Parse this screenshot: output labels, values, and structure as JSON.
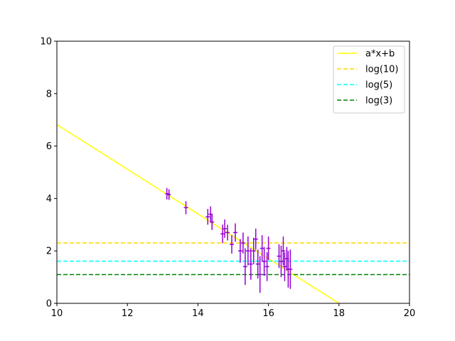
{
  "chart_data": {
    "type": "scatter",
    "title": "",
    "xlabel": "",
    "ylabel": "",
    "xlim": [
      10,
      20
    ],
    "ylim": [
      0,
      10
    ],
    "x_ticks": [
      "10",
      "12",
      "14",
      "16",
      "18",
      "20"
    ],
    "y_ticks": [
      "0",
      "2",
      "4",
      "6",
      "8",
      "10"
    ],
    "legend_position": "top-right",
    "series": [
      {
        "name": "a*x+b",
        "kind": "line",
        "color": "#ffff00",
        "style": "solid",
        "x": [
          10,
          18
        ],
        "y": [
          6.82,
          0
        ]
      },
      {
        "name": "log(10)",
        "kind": "hline",
        "color": "#ffd700",
        "style": "dashed",
        "value": 2.3026
      },
      {
        "name": "log(5)",
        "kind": "hline",
        "color": "#00ffff",
        "style": "dashed",
        "value": 1.6094
      },
      {
        "name": "log(3)",
        "kind": "hline",
        "color": "#008000",
        "style": "dashed",
        "value": 1.0986
      }
    ],
    "points": {
      "color": "#9400d3",
      "data": [
        {
          "x": 13.12,
          "y": 4.18,
          "yerr": 0.22,
          "xerr": 0.05
        },
        {
          "x": 13.18,
          "y": 4.15,
          "yerr": 0.2,
          "xerr": 0.05
        },
        {
          "x": 13.66,
          "y": 3.65,
          "yerr": 0.25,
          "xerr": 0.06
        },
        {
          "x": 14.28,
          "y": 3.3,
          "yerr": 0.3,
          "xerr": 0.06
        },
        {
          "x": 14.36,
          "y": 3.4,
          "yerr": 0.3,
          "xerr": 0.06
        },
        {
          "x": 14.4,
          "y": 3.1,
          "yerr": 0.3,
          "xerr": 0.06
        },
        {
          "x": 14.7,
          "y": 2.65,
          "yerr": 0.35,
          "xerr": 0.06
        },
        {
          "x": 14.76,
          "y": 2.85,
          "yerr": 0.35,
          "xerr": 0.06
        },
        {
          "x": 14.84,
          "y": 2.7,
          "yerr": 0.3,
          "xerr": 0.06
        },
        {
          "x": 14.96,
          "y": 2.25,
          "yerr": 0.35,
          "xerr": 0.06
        },
        {
          "x": 15.06,
          "y": 2.7,
          "yerr": 0.35,
          "xerr": 0.06
        },
        {
          "x": 15.2,
          "y": 2.0,
          "yerr": 0.45,
          "xerr": 0.06
        },
        {
          "x": 15.28,
          "y": 2.3,
          "yerr": 0.4,
          "xerr": 0.06
        },
        {
          "x": 15.34,
          "y": 1.4,
          "yerr": 0.7,
          "xerr": 0.06
        },
        {
          "x": 15.42,
          "y": 2.0,
          "yerr": 0.55,
          "xerr": 0.06
        },
        {
          "x": 15.5,
          "y": 1.5,
          "yerr": 0.6,
          "xerr": 0.06
        },
        {
          "x": 15.58,
          "y": 2.0,
          "yerr": 0.5,
          "xerr": 0.06
        },
        {
          "x": 15.64,
          "y": 2.45,
          "yerr": 0.4,
          "xerr": 0.06
        },
        {
          "x": 15.7,
          "y": 1.5,
          "yerr": 0.55,
          "xerr": 0.06
        },
        {
          "x": 15.76,
          "y": 1.1,
          "yerr": 0.7,
          "xerr": 0.06
        },
        {
          "x": 15.82,
          "y": 2.1,
          "yerr": 0.5,
          "xerr": 0.06
        },
        {
          "x": 15.88,
          "y": 1.6,
          "yerr": 0.55,
          "xerr": 0.06
        },
        {
          "x": 15.96,
          "y": 1.4,
          "yerr": 0.55,
          "xerr": 0.06
        },
        {
          "x": 16.0,
          "y": 2.1,
          "yerr": 0.45,
          "xerr": 0.06
        },
        {
          "x": 16.3,
          "y": 1.8,
          "yerr": 0.45,
          "xerr": 0.06
        },
        {
          "x": 16.36,
          "y": 1.6,
          "yerr": 0.6,
          "xerr": 0.06
        },
        {
          "x": 16.42,
          "y": 2.0,
          "yerr": 0.55,
          "xerr": 0.06
        },
        {
          "x": 16.46,
          "y": 1.4,
          "yerr": 0.55,
          "xerr": 0.06
        },
        {
          "x": 16.52,
          "y": 1.7,
          "yerr": 0.45,
          "xerr": 0.06
        },
        {
          "x": 16.56,
          "y": 1.3,
          "yerr": 0.7,
          "xerr": 0.06
        },
        {
          "x": 16.62,
          "y": 1.3,
          "yerr": 0.75,
          "xerr": 0.06
        }
      ]
    }
  }
}
